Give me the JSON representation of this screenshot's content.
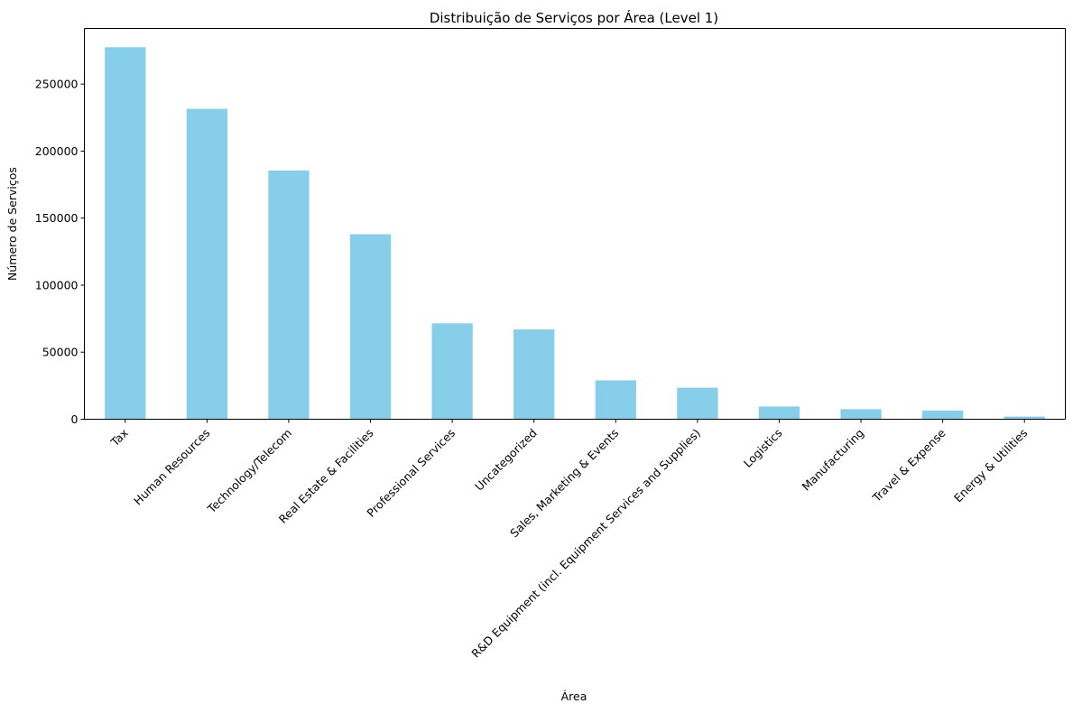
{
  "chart_data": {
    "type": "bar",
    "title": "Distribuição de Serviços por Área (Level 1)",
    "xlabel": "Área",
    "ylabel": "Número de Serviços",
    "categories": [
      "Tax",
      "Human Resources",
      "Technology/Telecom",
      "Real Estate & Facilities",
      "Professional Services",
      "Uncategorized",
      "Sales, Marketing & Events",
      "R&D Equipment (incl. Equipment Services and Supplies)",
      "Logistics",
      "Manufacturing",
      "Travel & Expense",
      "Energy & Utilities"
    ],
    "values": [
      277500,
      231500,
      185500,
      138000,
      71500,
      67000,
      29000,
      23500,
      9500,
      7500,
      6500,
      2000
    ],
    "ylim": [
      0,
      291500
    ],
    "yticks": [
      0,
      50000,
      100000,
      150000,
      200000,
      250000
    ],
    "bar_color": "#87ceeb",
    "grid": false,
    "legend": "none"
  }
}
